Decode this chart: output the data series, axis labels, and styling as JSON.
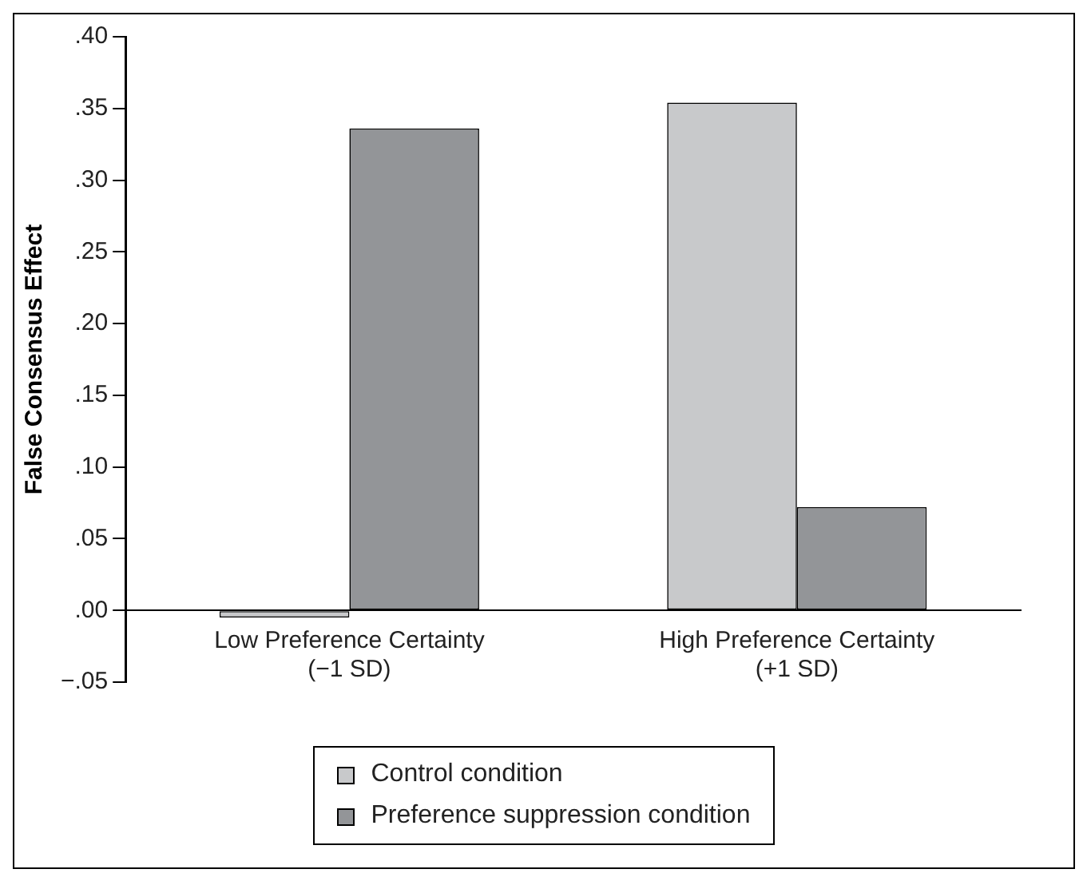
{
  "chart_data": {
    "type": "bar",
    "ylabel": "False Consensus Effect",
    "categories": [
      "Low Preference Certainty\n(−1 SD)",
      "High Preference Certainty\n(+1 SD)"
    ],
    "series": [
      {
        "name": "Control condition",
        "color": "#c8c9cb",
        "values": [
          -0.005,
          0.354
        ]
      },
      {
        "name": "Preference suppression condition",
        "color": "#939598",
        "values": [
          0.336,
          0.072
        ]
      }
    ],
    "ylim": [
      -0.05,
      0.4
    ],
    "yticks": [
      {
        "value": -0.05,
        "label": "−.05"
      },
      {
        "value": 0,
        "label": ".00"
      },
      {
        "value": 0.05,
        "label": ".05"
      },
      {
        "value": 0.1,
        "label": ".10"
      },
      {
        "value": 0.15,
        "label": ".15"
      },
      {
        "value": 0.2,
        "label": ".20"
      },
      {
        "value": 0.25,
        "label": ".25"
      },
      {
        "value": 0.3,
        "label": ".30"
      },
      {
        "value": 0.35,
        "label": ".35"
      },
      {
        "value": 0.4,
        "label": ".40"
      }
    ],
    "grid": false,
    "legend": "bottom"
  }
}
